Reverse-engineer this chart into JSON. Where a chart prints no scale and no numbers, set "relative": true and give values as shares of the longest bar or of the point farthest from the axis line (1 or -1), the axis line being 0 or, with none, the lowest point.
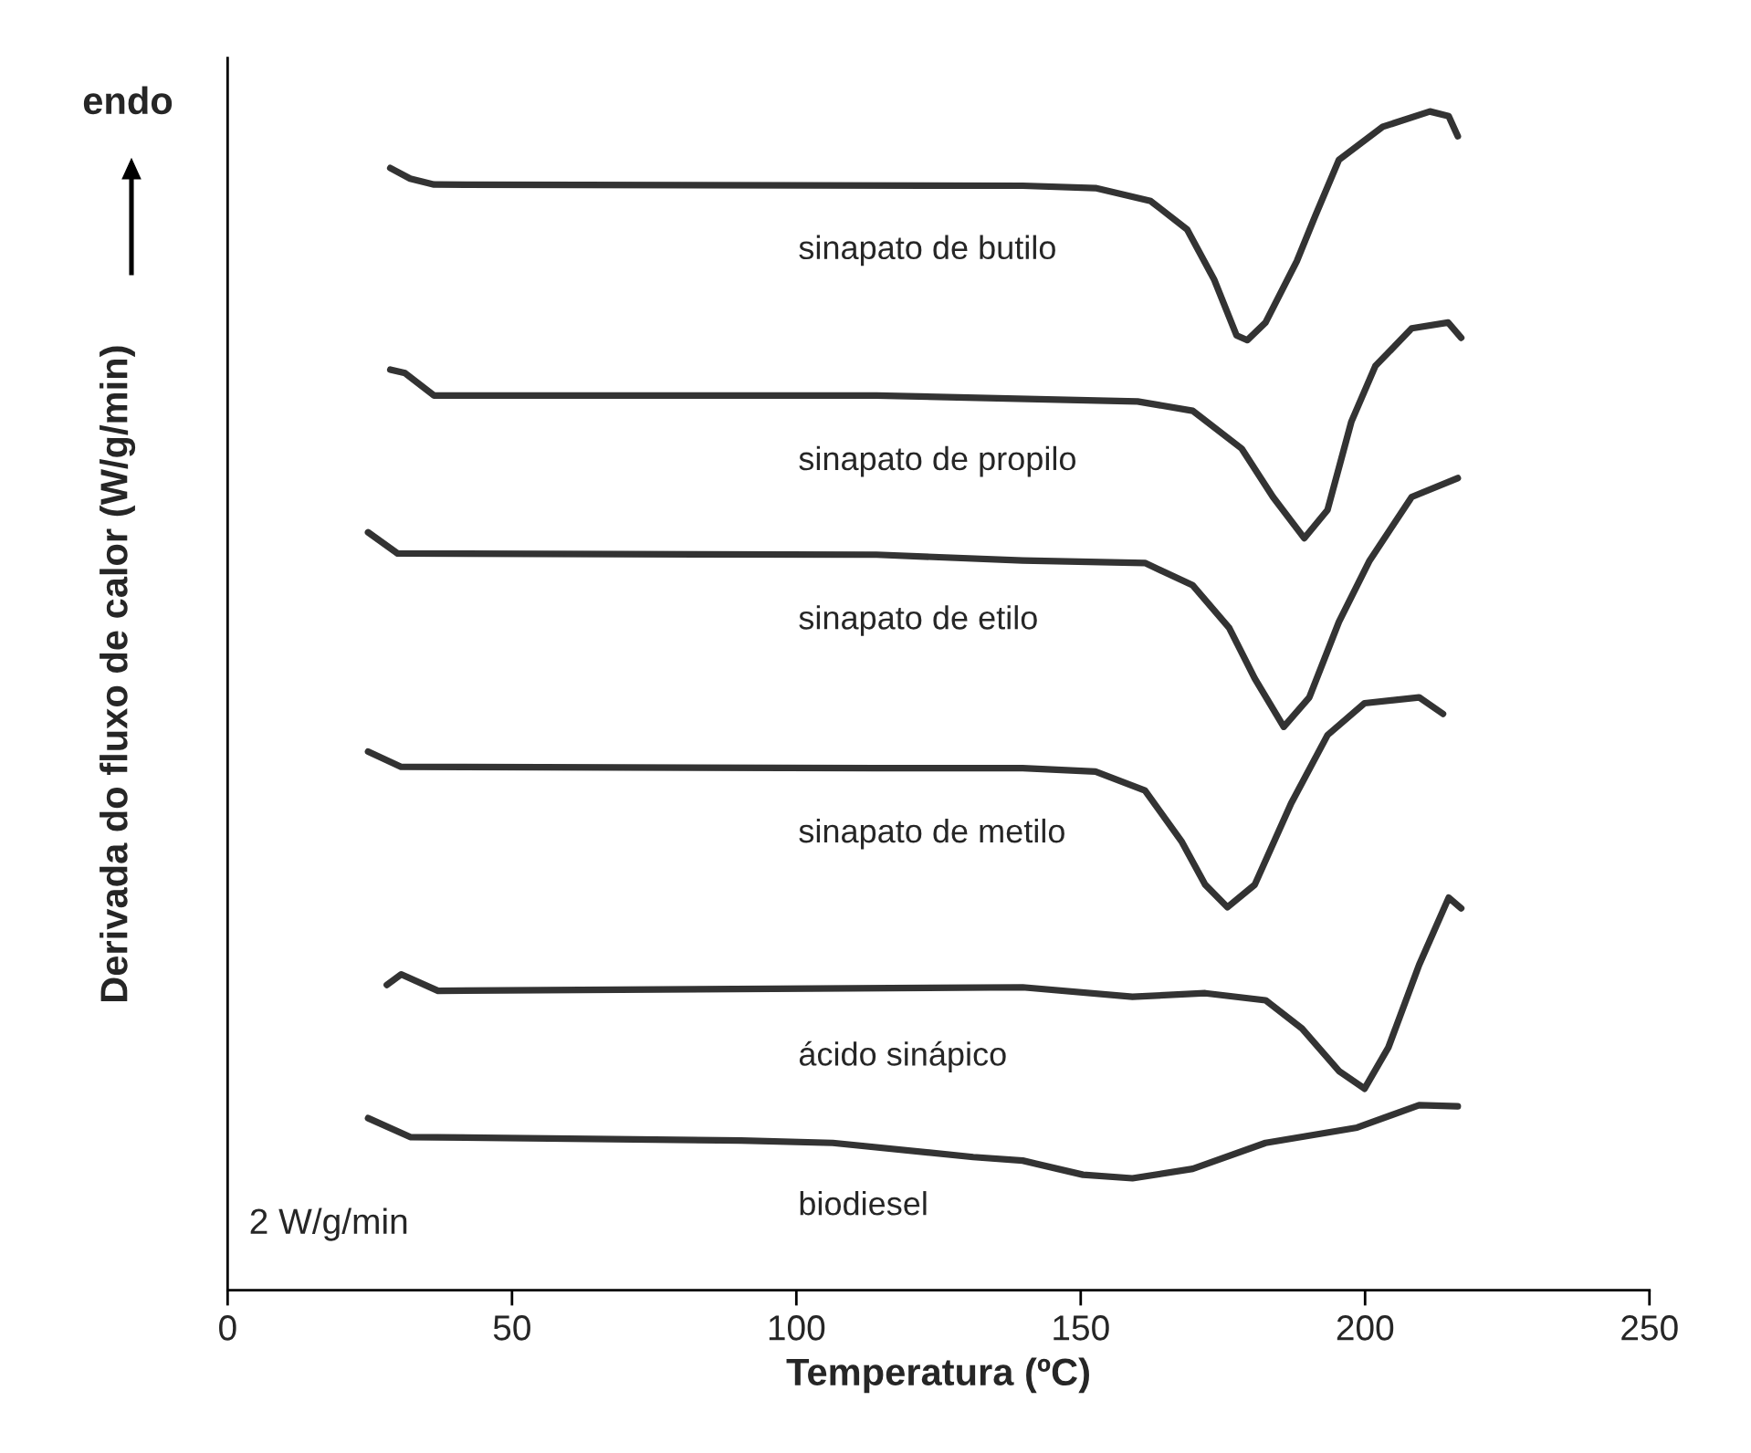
{
  "chart_data": {
    "type": "line",
    "relative": true,
    "xlabel": "Temperatura (ºC)",
    "ylabel": "Derivada do fluxo de calor (W/g/min)",
    "xlim": [
      0,
      250
    ],
    "xticks": [
      0,
      50,
      100,
      150,
      200,
      250
    ],
    "grid": false,
    "legend": false,
    "marker": "none",
    "line_style": "solid",
    "annotations": [
      "endo",
      "2 W/g/min"
    ],
    "series": [
      {
        "name": "sinapato de butilo",
        "color": "#333333",
        "x": [
          28.6,
          32.1,
          36.3,
          139.8,
          152.6,
          162.3,
          168.7,
          173.5,
          177.4,
          179.3,
          182.5,
          188.0,
          191.2,
          195.4,
          203.1,
          211.4,
          214.7,
          216.3
        ],
        "values": [
          0.952,
          0.943,
          0.938,
          0.937,
          0.935,
          0.924,
          0.9,
          0.857,
          0.81,
          0.806,
          0.821,
          0.873,
          0.911,
          0.959,
          0.987,
          1.0,
          0.996,
          0.979
        ]
      },
      {
        "name": "sinapato de propilo",
        "color": "#333333",
        "x": [
          28.6,
          31.2,
          36.3,
          114.1,
          160.0,
          169.7,
          178.3,
          183.8,
          189.3,
          193.4,
          197.6,
          201.8,
          208.2,
          214.6,
          216.9
        ],
        "values": [
          0.781,
          0.778,
          0.759,
          0.759,
          0.754,
          0.746,
          0.714,
          0.673,
          0.638,
          0.662,
          0.737,
          0.784,
          0.816,
          0.821,
          0.808
        ]
      },
      {
        "name": "sinapato de etilo",
        "color": "#333333",
        "x": [
          24.7,
          29.9,
          114.1,
          139.8,
          161.3,
          169.7,
          176.1,
          180.6,
          185.7,
          190.2,
          195.4,
          200.8,
          208.2,
          216.3
        ],
        "values": [
          0.643,
          0.625,
          0.624,
          0.619,
          0.617,
          0.598,
          0.562,
          0.519,
          0.478,
          0.503,
          0.567,
          0.619,
          0.673,
          0.689
        ]
      },
      {
        "name": "sinapato de metilo",
        "color": "#333333",
        "x": [
          24.7,
          30.5,
          114.1,
          139.8,
          152.6,
          161.3,
          167.7,
          171.9,
          175.8,
          180.6,
          187.0,
          193.4,
          199.9,
          209.5,
          213.7
        ],
        "values": [
          0.457,
          0.444,
          0.443,
          0.443,
          0.44,
          0.424,
          0.381,
          0.344,
          0.325,
          0.344,
          0.413,
          0.471,
          0.498,
          0.503,
          0.489
        ]
      },
      {
        "name": "ácido sinápico",
        "color": "#333333",
        "x": [
          28.0,
          30.5,
          37.0,
          139.8,
          159.1,
          171.9,
          182.5,
          188.9,
          195.4,
          199.9,
          204.1,
          209.5,
          214.7,
          216.9
        ],
        "values": [
          0.259,
          0.268,
          0.254,
          0.257,
          0.249,
          0.252,
          0.246,
          0.222,
          0.186,
          0.171,
          0.206,
          0.276,
          0.333,
          0.324
        ]
      },
      {
        "name": "biodiesel",
        "color": "#333333",
        "x": [
          24.7,
          32.1,
          90.3,
          106.4,
          131.1,
          139.8,
          150.4,
          159.1,
          169.7,
          182.5,
          198.6,
          209.5,
          216.3
        ],
        "values": [
          0.146,
          0.13,
          0.127,
          0.125,
          0.113,
          0.11,
          0.098,
          0.095,
          0.103,
          0.125,
          0.138,
          0.157,
          0.156
        ]
      }
    ]
  }
}
